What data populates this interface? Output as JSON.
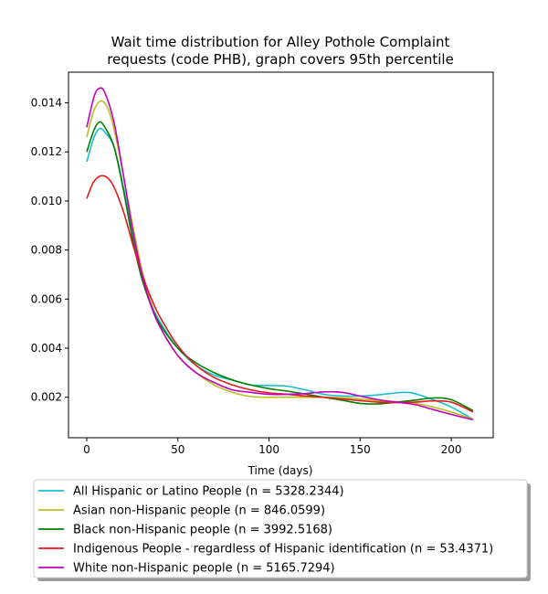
{
  "chart_data": {
    "type": "line",
    "title_line1": "Wait time distribution  for Alley Pothole Complaint",
    "title_line2": "requests (code PHB), graph covers 95th percentile",
    "xlabel": "Time (days)",
    "ylabel": "",
    "xlim": [
      -10,
      223
    ],
    "ylim": [
      0.00035,
      0.01525
    ],
    "xticks": [
      0,
      50,
      100,
      150,
      200
    ],
    "yticks": [
      0.002,
      0.004,
      0.006,
      0.008,
      0.01,
      0.012,
      0.014
    ],
    "ytick_labels": [
      "0.002",
      "0.004",
      "0.006",
      "0.008",
      "0.010",
      "0.012",
      "0.014"
    ],
    "grid": false,
    "legend_position": "below",
    "series": [
      {
        "name": "All Hispanic or Latino People (n = 5328.2344)",
        "color": "#17becf",
        "x": [
          0,
          4,
          7,
          10,
          15,
          20,
          25,
          30,
          35,
          40,
          50,
          60,
          70,
          80,
          90,
          100,
          110,
          120,
          130,
          140,
          150,
          160,
          170,
          175,
          180,
          190,
          200,
          212
        ],
        "y": [
          0.0116,
          0.0126,
          0.01295,
          0.0128,
          0.0122,
          0.0106,
          0.0087,
          0.0071,
          0.0059,
          0.0051,
          0.004,
          0.0033,
          0.0029,
          0.0027,
          0.0025,
          0.00248,
          0.00245,
          0.0023,
          0.00212,
          0.00205,
          0.00205,
          0.0021,
          0.00218,
          0.0022,
          0.00215,
          0.0019,
          0.0016,
          0.0011
        ]
      },
      {
        "name": "Asian non-Hispanic people (n = 846.0599)",
        "color": "#bcbd22",
        "x": [
          0,
          4,
          8,
          12,
          16,
          20,
          25,
          30,
          35,
          40,
          50,
          60,
          70,
          80,
          90,
          100,
          110,
          120,
          130,
          140,
          150,
          160,
          170,
          180,
          190,
          200,
          212
        ],
        "y": [
          0.0126,
          0.0137,
          0.01408,
          0.0137,
          0.0126,
          0.0111,
          0.0091,
          0.0073,
          0.0059,
          0.0049,
          0.0037,
          0.003,
          0.0025,
          0.0022,
          0.00203,
          0.002,
          0.002,
          0.002,
          0.002,
          0.00198,
          0.00193,
          0.00186,
          0.00182,
          0.00175,
          0.0016,
          0.0014,
          0.0011
        ]
      },
      {
        "name": "Black non-Hispanic people (n = 3992.5168)",
        "color": "#008000",
        "x": [
          0,
          4,
          7,
          10,
          15,
          20,
          25,
          30,
          35,
          40,
          50,
          60,
          70,
          80,
          90,
          100,
          110,
          120,
          130,
          140,
          150,
          160,
          170,
          180,
          190,
          200,
          212
        ],
        "y": [
          0.012,
          0.0129,
          0.01322,
          0.013,
          0.0122,
          0.0105,
          0.0085,
          0.0069,
          0.0058,
          0.005,
          0.004,
          0.0034,
          0.003,
          0.0027,
          0.0025,
          0.00235,
          0.00225,
          0.00213,
          0.002,
          0.00188,
          0.00175,
          0.00173,
          0.0018,
          0.00188,
          0.00197,
          0.0019,
          0.00145
        ]
      },
      {
        "name": "Indigenous People - regardless of Hispanic identification (n = 53.4371)",
        "color": "#e41a1c",
        "x": [
          0,
          4,
          9,
          14,
          20,
          25,
          30,
          35,
          40,
          50,
          60,
          70,
          80,
          90,
          100,
          110,
          120,
          130,
          140,
          150,
          160,
          170,
          180,
          190,
          200,
          212
        ],
        "y": [
          0.0101,
          0.0108,
          0.01103,
          0.0107,
          0.0096,
          0.0083,
          0.0071,
          0.0061,
          0.0053,
          0.0041,
          0.0033,
          0.0028,
          0.0025,
          0.0023,
          0.00218,
          0.00212,
          0.00205,
          0.002,
          0.00193,
          0.00186,
          0.0018,
          0.00178,
          0.0018,
          0.00185,
          0.0018,
          0.0014
        ]
      },
      {
        "name": "White non-Hispanic people (n = 5165.7294)",
        "color": "#bf00bf",
        "x": [
          0,
          4,
          7,
          10,
          15,
          20,
          25,
          30,
          35,
          40,
          50,
          60,
          70,
          80,
          90,
          100,
          110,
          120,
          130,
          140,
          150,
          160,
          170,
          180,
          190,
          200,
          212
        ],
        "y": [
          0.013,
          0.01425,
          0.0146,
          0.0144,
          0.0132,
          0.0111,
          0.0089,
          0.0071,
          0.0058,
          0.0049,
          0.0037,
          0.003,
          0.0026,
          0.0023,
          0.0022,
          0.00212,
          0.00212,
          0.00215,
          0.00222,
          0.0022,
          0.00205,
          0.0019,
          0.0018,
          0.0017,
          0.0015,
          0.0013,
          0.00108
        ]
      }
    ]
  }
}
